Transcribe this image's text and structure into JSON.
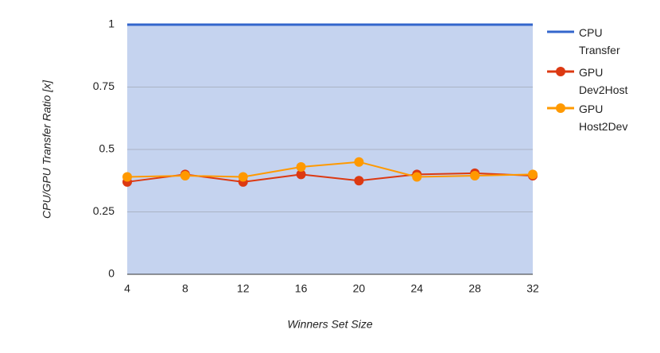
{
  "chart_data": {
    "type": "line",
    "x_label": "Winners Set Size",
    "y_label": "CPU/GPU Transfer Ratio [x]",
    "x": [
      4,
      8,
      12,
      16,
      20,
      24,
      28,
      32
    ],
    "xlim": [
      4,
      32
    ],
    "xticks": [
      4,
      8,
      12,
      16,
      20,
      24,
      28,
      32
    ],
    "ylim": [
      0,
      1
    ],
    "yticks": [
      0,
      0.25,
      0.5,
      0.75,
      1
    ],
    "grid": true,
    "legend": "right",
    "series": [
      {
        "name": "CPU Transfer",
        "color": "#3366cc",
        "area_color": "#c5d3ef",
        "markers": false,
        "values": [
          1,
          1,
          1,
          1,
          1,
          1,
          1,
          1
        ]
      },
      {
        "name": "GPU Dev2Host",
        "color": "#dc3912",
        "markers": true,
        "values": [
          0.37,
          0.4,
          0.37,
          0.4,
          0.375,
          0.4,
          0.405,
          0.395
        ]
      },
      {
        "name": "GPU Host2Dev",
        "color": "#ff9900",
        "markers": true,
        "values": [
          0.39,
          0.395,
          0.39,
          0.43,
          0.45,
          0.39,
          0.395,
          0.4
        ]
      }
    ]
  }
}
